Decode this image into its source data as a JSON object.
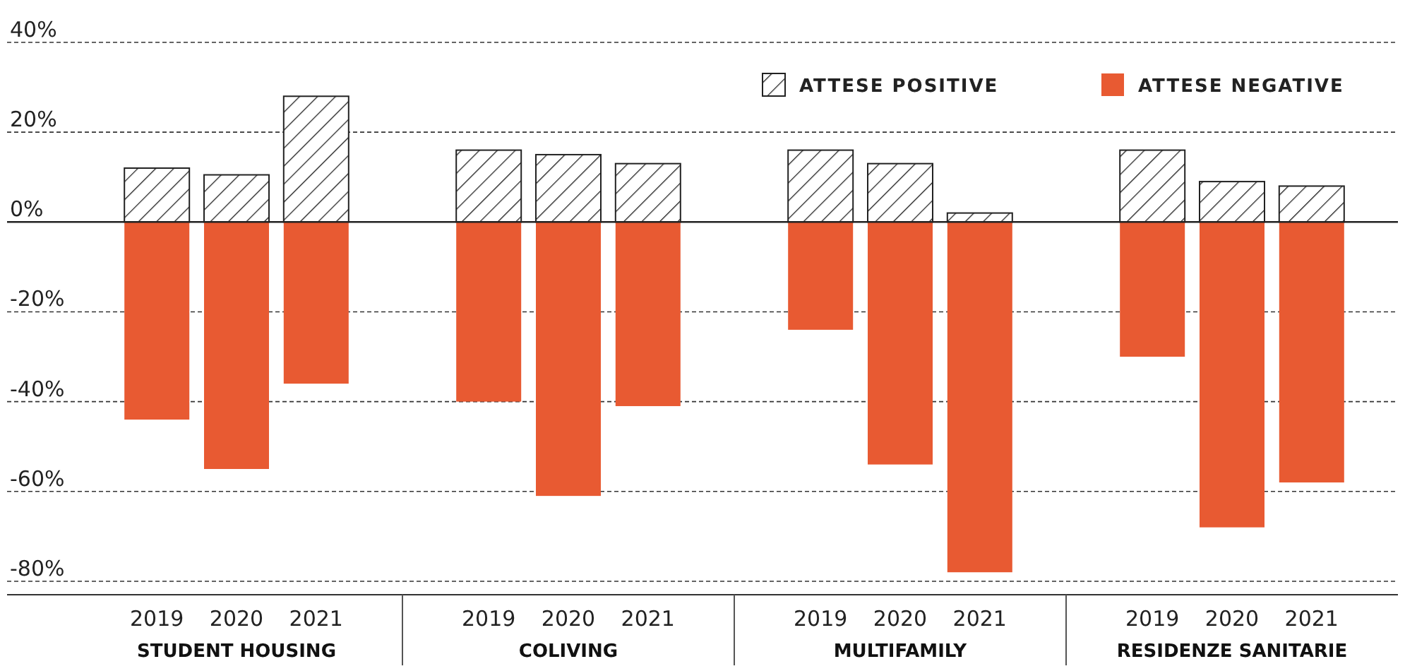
{
  "chart_data": {
    "type": "bar",
    "stacked": true,
    "categories": [
      "2019",
      "2020",
      "2021",
      "2019",
      "2020",
      "2021",
      "2019",
      "2020",
      "2021",
      "2019",
      "2020",
      "2021"
    ],
    "series": [
      {
        "name": "ATTESE POSITIVE",
        "color": "#222222",
        "values": [
          12,
          10.5,
          28,
          16,
          15,
          13,
          16,
          13,
          2,
          16,
          9,
          8
        ]
      },
      {
        "name": "ATTESE NEGATIVE",
        "color": "#e85a32",
        "values": [
          -44,
          -55,
          -36,
          -40,
          -61,
          -41,
          -24,
          -54,
          -78,
          -30,
          -68,
          -58
        ]
      }
    ],
    "ylim": [
      -83,
      40
    ],
    "yticks": [
      {
        "value": 40,
        "label": "40%"
      },
      {
        "value": 20,
        "label": "20%"
      },
      {
        "value": 0,
        "label": "0%"
      },
      {
        "value": -20,
        "label": "-20%"
      },
      {
        "value": -40,
        "label": "-40%"
      },
      {
        "value": -60,
        "label": "-60%"
      },
      {
        "value": -80,
        "label": "-80%"
      }
    ],
    "grid": "y",
    "legend": "top right",
    "annotations": [
      "STUDENT HOUSING",
      "COLIVING",
      "MULTIFAMILY",
      "RESIDENZE SANITARIE"
    ]
  }
}
